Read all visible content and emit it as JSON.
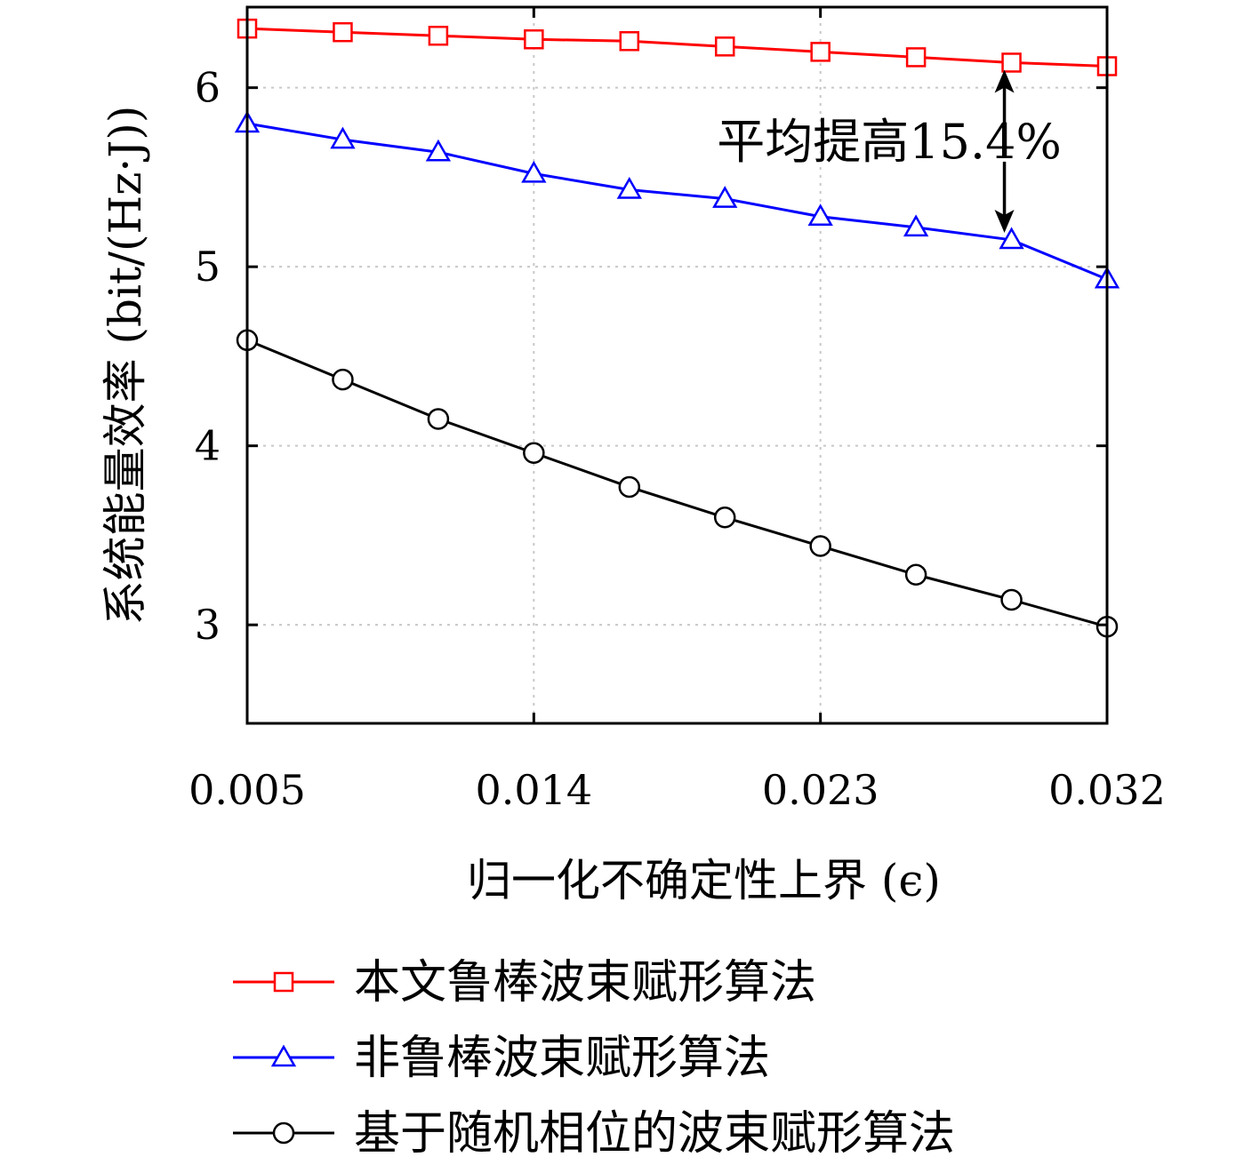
{
  "chart_data": {
    "type": "line",
    "xlabel": "归一化不确定性上界 (ϵ)",
    "ylabel": "系统能量效率 (bit/(Hz·J))",
    "xlim": [
      0.005,
      0.032
    ],
    "ylim": [
      2.45,
      6.45
    ],
    "xticks": [
      0.005,
      0.014,
      0.023,
      0.032
    ],
    "xtick_labels": [
      "0.005",
      "0.014",
      "0.023",
      "0.032"
    ],
    "yticks": [
      3,
      4,
      5,
      6
    ],
    "ytick_labels": [
      "3",
      "4",
      "5",
      "6"
    ],
    "grid": true,
    "legend_position": "below",
    "x": [
      0.005,
      0.008,
      0.011,
      0.014,
      0.017,
      0.02,
      0.023,
      0.026,
      0.029,
      0.032
    ],
    "series": [
      {
        "name": "本文鲁棒波束赋形算法",
        "color": "#ff0000",
        "marker": "square",
        "values": [
          6.33,
          6.31,
          6.29,
          6.27,
          6.26,
          6.23,
          6.2,
          6.17,
          6.14,
          6.12
        ]
      },
      {
        "name": "非鲁棒波束赋形算法",
        "color": "#0000ff",
        "marker": "triangle",
        "values": [
          5.8,
          5.71,
          5.64,
          5.52,
          5.43,
          5.38,
          5.28,
          5.22,
          5.15,
          4.93
        ]
      },
      {
        "name": "基于随机相位的波束赋形算法",
        "color": "#000000",
        "marker": "circle",
        "values": [
          4.59,
          4.37,
          4.15,
          3.96,
          3.77,
          3.6,
          3.44,
          3.28,
          3.14,
          2.99
        ]
      }
    ],
    "annotation": {
      "text": "平均提高15.4%",
      "x": 0.029,
      "y_from": 6.14,
      "y_to": 5.15
    }
  }
}
